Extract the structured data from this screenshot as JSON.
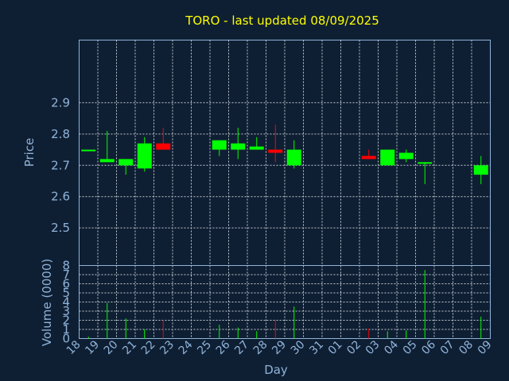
{
  "chart_data": {
    "type": "candlestick",
    "title": "TORO - last updated 08/09/2025",
    "ylabel": "Price",
    "volume_label": "Volume (0000)",
    "xlabel": "Day",
    "grid": true,
    "price_ylim": [
      2.38,
      3.1
    ],
    "price_ticks": [
      "2.5",
      "2.6",
      "2.7",
      "2.8",
      "2.9"
    ],
    "volume_ylim": [
      0,
      8
    ],
    "volume_ticks": [
      "0",
      "1",
      "2",
      "3",
      "4",
      "5",
      "6",
      "7",
      "8"
    ],
    "x_ticks": [
      "18",
      "19",
      "20",
      "21",
      "22",
      "23",
      "24",
      "25",
      "26",
      "27",
      "28",
      "29",
      "30",
      "31",
      "01",
      "02",
      "03",
      "04",
      "05",
      "06",
      "07",
      "08",
      "09"
    ],
    "candles": [
      {
        "day": "18",
        "open": 2.75,
        "high": 2.75,
        "low": 2.75,
        "close": 2.75,
        "volume": 0.2
      },
      {
        "day": "19",
        "open": 2.71,
        "high": 2.81,
        "low": 2.71,
        "close": 2.72,
        "volume": 3.9
      },
      {
        "day": "20",
        "open": 2.7,
        "high": 2.72,
        "low": 2.67,
        "close": 2.72,
        "volume": 2.2
      },
      {
        "day": "21",
        "open": 2.69,
        "high": 2.79,
        "low": 2.68,
        "close": 2.77,
        "volume": 1.0
      },
      {
        "day": "22",
        "open": 2.77,
        "high": 2.82,
        "low": 2.75,
        "close": 2.75,
        "volume": 2.0
      },
      {
        "day": "25",
        "open": 2.75,
        "high": 2.78,
        "low": 2.73,
        "close": 2.78,
        "volume": 1.5
      },
      {
        "day": "26",
        "open": 2.75,
        "high": 2.82,
        "low": 2.72,
        "close": 2.77,
        "volume": 1.2
      },
      {
        "day": "27",
        "open": 2.75,
        "high": 2.79,
        "low": 2.75,
        "close": 2.76,
        "volume": 0.8
      },
      {
        "day": "28",
        "open": 2.75,
        "high": 2.83,
        "low": 2.71,
        "close": 2.74,
        "volume": 2.0
      },
      {
        "day": "29",
        "open": 2.7,
        "high": 2.78,
        "low": 2.69,
        "close": 2.75,
        "volume": 3.5
      },
      {
        "day": "02",
        "open": 2.73,
        "high": 2.75,
        "low": 2.72,
        "close": 2.72,
        "volume": 1.1
      },
      {
        "day": "03",
        "open": 2.7,
        "high": 2.75,
        "low": 2.7,
        "close": 2.75,
        "volume": 0.8
      },
      {
        "day": "04",
        "open": 2.72,
        "high": 2.75,
        "low": 2.71,
        "close": 2.74,
        "volume": 0.9
      },
      {
        "day": "05",
        "open": 2.71,
        "high": 2.71,
        "low": 2.64,
        "close": 2.71,
        "volume": 7.5
      },
      {
        "day": "08",
        "open": 2.67,
        "high": 2.73,
        "low": 2.64,
        "close": 2.7,
        "volume": 2.4
      }
    ],
    "colors": {
      "background": "#0f1f33",
      "grid": "#c0c8d0",
      "axis": "#8fb3d9",
      "title": "#ffff00",
      "up": "#00ff00",
      "down": "#ff0000"
    }
  }
}
